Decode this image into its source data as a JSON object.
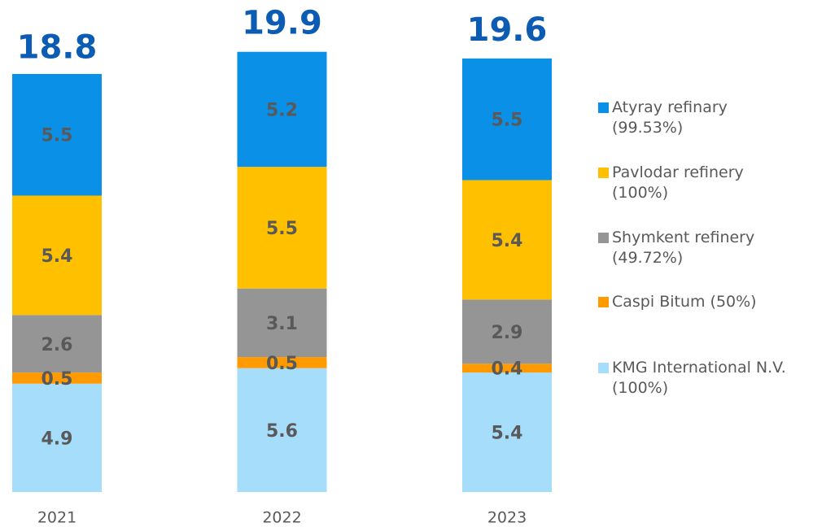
{
  "chart_data": {
    "type": "stacked-bar",
    "categories": [
      "2021",
      "2022",
      "2023"
    ],
    "series": [
      {
        "name": "KMG International N.V.\n(100%)",
        "color": "#a6ddfb",
        "values": [
          4.9,
          5.6,
          5.4
        ]
      },
      {
        "name": "Caspi Bitum (50%)",
        "color": "#ff9a00",
        "values": [
          0.5,
          0.5,
          0.4
        ]
      },
      {
        "name": "Shymkent refinery\n(49.72%)",
        "color": "#959595",
        "values": [
          2.6,
          3.1,
          2.9
        ]
      },
      {
        "name": "Pavlodar refinery\n(100%)",
        "color": "#ffc000",
        "values": [
          5.4,
          5.5,
          5.4
        ]
      },
      {
        "name": "Atyray refinary\n(99.53%)",
        "color": "#0a90e6",
        "values": [
          5.5,
          5.2,
          5.5
        ]
      }
    ],
    "totals": [
      18.8,
      19.9,
      19.6
    ],
    "legend": "right"
  }
}
